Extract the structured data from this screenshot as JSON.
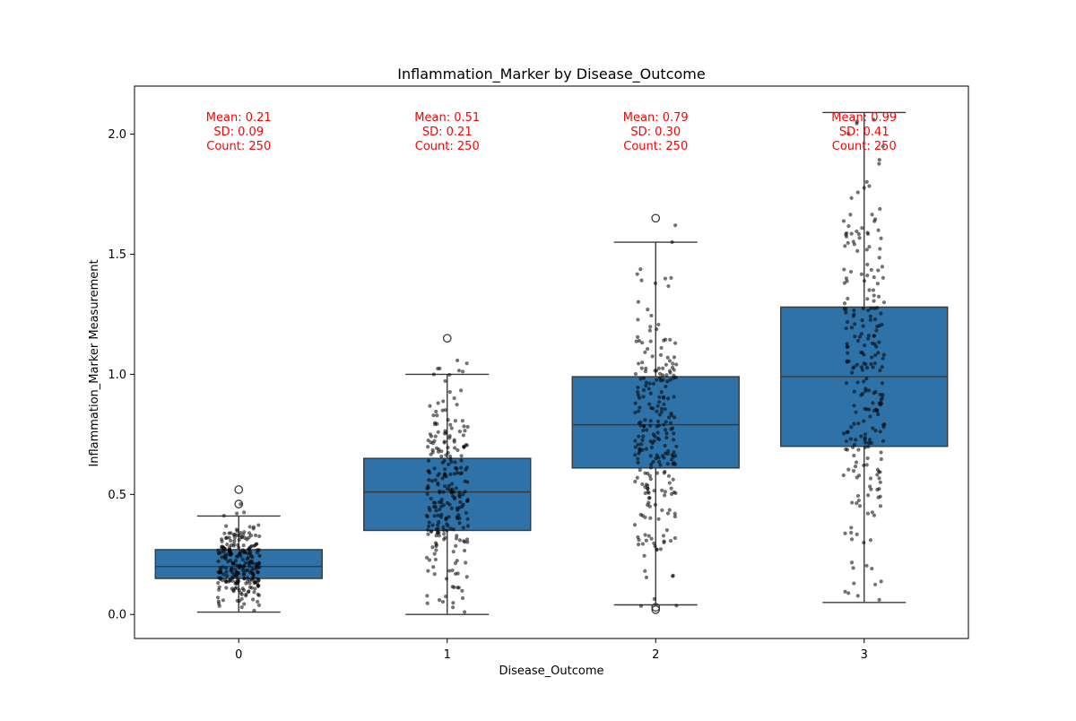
{
  "chart_data": {
    "type": "box",
    "title": "Inflammation_Marker by Disease_Outcome",
    "xlabel": "Disease_Outcome",
    "ylabel": "Inflammation_Marker Measurement",
    "ylim": [
      -0.1,
      2.2
    ],
    "yticks": [
      "0.0",
      "0.5",
      "1.0",
      "1.5",
      "2.0"
    ],
    "ytick_values": [
      0.0,
      0.5,
      1.0,
      1.5,
      2.0
    ],
    "categories": [
      "0",
      "1",
      "2",
      "3"
    ],
    "grid": false,
    "colors": {
      "box": "#2e72a8",
      "edge": "#3a3a3a",
      "points": "#000000",
      "annotation": "#ff0000"
    },
    "boxes": [
      {
        "category": "0",
        "whisker_low": 0.01,
        "q1": 0.15,
        "median": 0.2,
        "q3": 0.27,
        "whisker_high": 0.41,
        "outliers": [
          0.52,
          0.46
        ]
      },
      {
        "category": "1",
        "whisker_low": 0.0,
        "q1": 0.35,
        "median": 0.51,
        "q3": 0.65,
        "whisker_high": 1.0,
        "outliers": [
          1.15
        ]
      },
      {
        "category": "2",
        "whisker_low": 0.04,
        "q1": 0.61,
        "median": 0.79,
        "q3": 0.99,
        "whisker_high": 1.55,
        "outliers": [
          1.65,
          0.03,
          0.02
        ]
      },
      {
        "category": "3",
        "whisker_low": 0.05,
        "q1": 0.7,
        "median": 0.99,
        "q3": 1.28,
        "whisker_high": 2.09,
        "outliers": []
      }
    ],
    "annotations": [
      {
        "category": "0",
        "mean": "Mean: 0.21",
        "sd": "SD: 0.09",
        "count": "Count: 250"
      },
      {
        "category": "1",
        "mean": "Mean: 0.51",
        "sd": "SD: 0.21",
        "count": "Count: 250"
      },
      {
        "category": "2",
        "mean": "Mean: 0.79",
        "sd": "SD: 0.30",
        "count": "Count: 250"
      },
      {
        "category": "3",
        "mean": "Mean: 0.99",
        "sd": "SD: 0.41",
        "count": "Count: 250"
      }
    ],
    "strip_points": {
      "count_per_category": 250,
      "per_category_stats": [
        {
          "mean": 0.21,
          "sd": 0.09,
          "min": 0.01,
          "max": 0.52
        },
        {
          "mean": 0.51,
          "sd": 0.21,
          "min": 0.0,
          "max": 1.15
        },
        {
          "mean": 0.79,
          "sd": 0.3,
          "min": 0.02,
          "max": 1.65
        },
        {
          "mean": 0.99,
          "sd": 0.41,
          "min": 0.05,
          "max": 2.09
        }
      ]
    }
  }
}
